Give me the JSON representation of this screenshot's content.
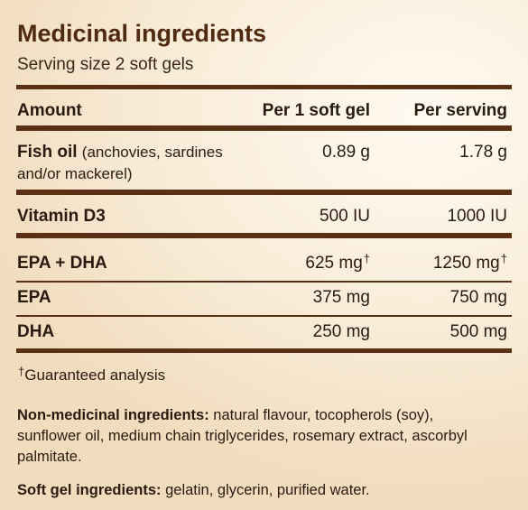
{
  "title": "Medicinal ingredients",
  "subtitle": "Serving size 2 soft gels",
  "table": {
    "headers": [
      "Amount",
      "Per 1 soft gel",
      "Per serving"
    ],
    "rows": [
      {
        "name": "Fish oil",
        "note": "(anchovies, sardines and/or mackerel)",
        "per_gel": "0.89 g",
        "per_serving": "1.78 g"
      },
      {
        "name": "Vitamin D3",
        "per_gel": "500 IU",
        "per_serving": "1000 IU"
      },
      {
        "name": "EPA + DHA",
        "per_gel": "625 mg",
        "per_serving": "1250 mg",
        "mark": "†"
      },
      {
        "name": "EPA",
        "per_gel": "375 mg",
        "per_serving": "750 mg"
      },
      {
        "name": "DHA",
        "per_gel": "250 mg",
        "per_serving": "500 mg"
      }
    ]
  },
  "footnote": {
    "mark": "†",
    "text": "Guaranteed analysis"
  },
  "non_medicinal": {
    "label": "Non-medicinal ingredients:",
    "text": "natural flavour, tocopherols (soy), sunflower oil, medium chain triglycerides, rosemary extract, ascorbyl palmitate."
  },
  "soft_gel": {
    "label": "Soft gel ingredients:",
    "text": "gelatin, glycerin, purified water."
  }
}
